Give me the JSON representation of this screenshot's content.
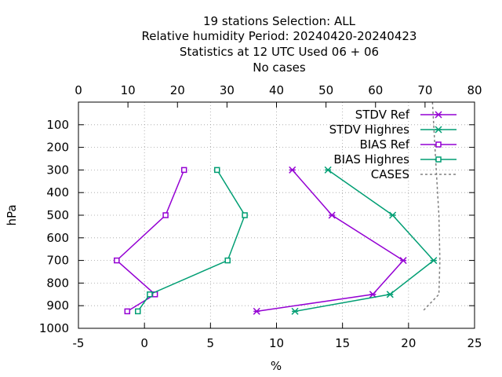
{
  "chart_data": {
    "type": "line",
    "title_lines": [
      "19 stations Selection: ALL",
      "Relative humidity  Period: 20240420-20240423",
      "Statistics at 12 UTC  Used  06 + 06",
      "No cases"
    ],
    "xlabel": "%",
    "ylabel": "hPa",
    "xlim": [
      -5,
      25
    ],
    "x_ticks": [
      "-5",
      "0",
      "5",
      "10",
      "15",
      "20",
      "25"
    ],
    "x2lim": [
      0,
      80
    ],
    "x2_ticks": [
      "0",
      "10",
      "20",
      "30",
      "40",
      "50",
      "60",
      "70",
      "80"
    ],
    "ylim": [
      1000,
      0
    ],
    "y_ticks": [
      "100",
      "200",
      "300",
      "400",
      "500",
      "600",
      "700",
      "800",
      "900",
      "1000"
    ],
    "grid": true,
    "legend_position": "top-right",
    "series": [
      {
        "name": "STDV Ref",
        "color": "#9400d3",
        "marker": "x-star",
        "points": [
          {
            "x": 11.2,
            "p": 300
          },
          {
            "x": 14.2,
            "p": 500
          },
          {
            "x": 19.6,
            "p": 700
          },
          {
            "x": 17.3,
            "p": 850
          },
          {
            "x": 8.5,
            "p": 925
          }
        ]
      },
      {
        "name": "STDV Highres",
        "color": "#009e73",
        "marker": "x-star",
        "points": [
          {
            "x": 13.9,
            "p": 300
          },
          {
            "x": 18.8,
            "p": 500
          },
          {
            "x": 21.9,
            "p": 700
          },
          {
            "x": 18.6,
            "p": 850
          },
          {
            "x": 11.4,
            "p": 925
          }
        ]
      },
      {
        "name": "BIAS Ref",
        "color": "#9400d3",
        "marker": "square",
        "points": [
          {
            "x": 3.0,
            "p": 300
          },
          {
            "x": 1.6,
            "p": 500
          },
          {
            "x": -2.1,
            "p": 700
          },
          {
            "x": 0.8,
            "p": 850
          },
          {
            "x": -1.3,
            "p": 925
          }
        ]
      },
      {
        "name": "BIAS Highres",
        "color": "#009e73",
        "marker": "square",
        "points": [
          {
            "x": 5.5,
            "p": 300
          },
          {
            "x": 7.6,
            "p": 500
          },
          {
            "x": 6.3,
            "p": 700
          },
          {
            "x": 0.4,
            "p": 850
          },
          {
            "x": -0.5,
            "p": 925
          }
        ]
      },
      {
        "name": "CASES",
        "color": "#808080",
        "marker": "none",
        "dashed": true,
        "axis": "x2",
        "points": [
          {
            "x": 71.5,
            "p": 0
          },
          {
            "x": 72.0,
            "p": 200
          },
          {
            "x": 72.8,
            "p": 500
          },
          {
            "x": 73.0,
            "p": 700
          },
          {
            "x": 72.8,
            "p": 850
          },
          {
            "x": 69.5,
            "p": 925
          }
        ]
      }
    ]
  }
}
